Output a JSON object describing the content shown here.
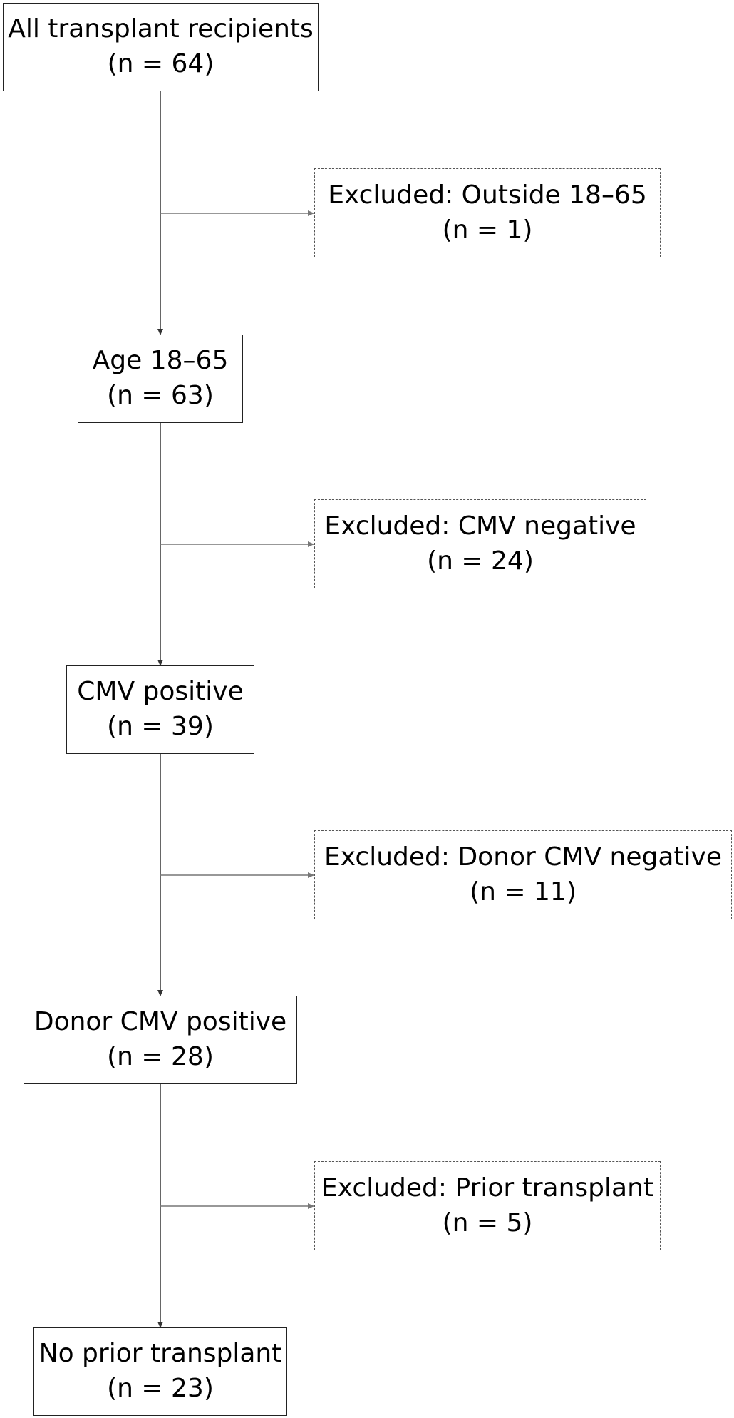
{
  "flow": {
    "stages": [
      {
        "label": "All transplant recipients",
        "count": "(n = 64)"
      },
      {
        "label": "Age 18–65",
        "count": "(n = 63)"
      },
      {
        "label": "CMV positive",
        "count": "(n = 39)"
      },
      {
        "label": "Donor CMV positive",
        "count": "(n = 28)"
      },
      {
        "label": "No prior transplant",
        "count": "(n = 23)"
      }
    ],
    "exclusions": [
      {
        "label": "Excluded: Outside 18–65",
        "count": "(n = 1)"
      },
      {
        "label": "Excluded: CMV negative",
        "count": "(n = 24)"
      },
      {
        "label": "Excluded: Donor CMV negative",
        "count": "(n = 11)"
      },
      {
        "label": "Excluded: Prior transplant",
        "count": "(n = 5)"
      }
    ]
  },
  "colors": {
    "main_border": "#222222",
    "excluded_border": "#555555",
    "main_arrow": "#333333",
    "branch_arrow": "#777777"
  }
}
